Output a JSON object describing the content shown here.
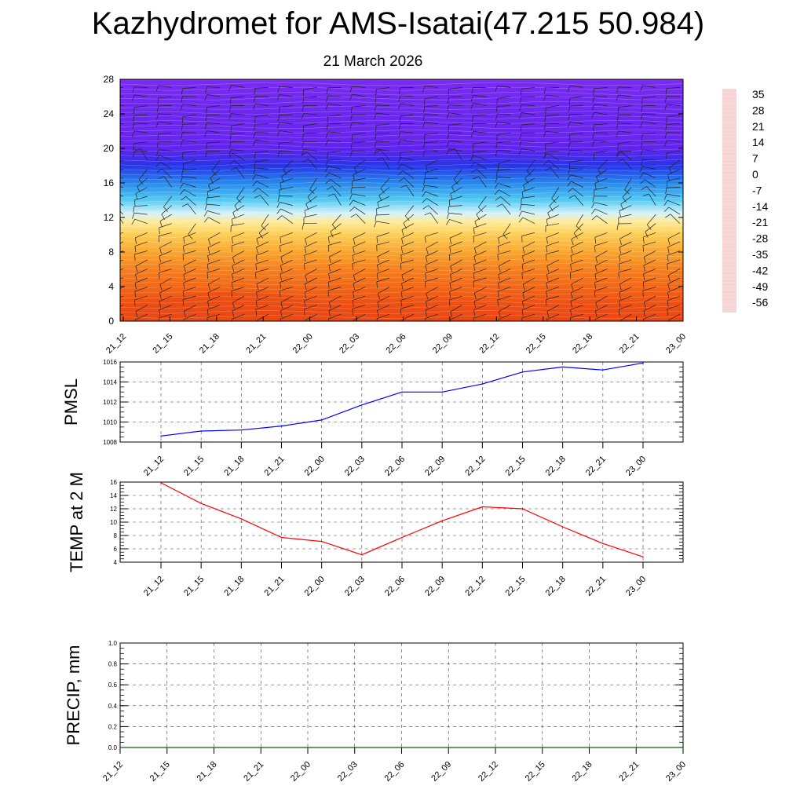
{
  "title": "Kazhydromet for AMS-Isatai(47.215 50.984)",
  "subtitle": "21 March 2026",
  "time_labels": [
    "21_12",
    "21_15",
    "21_18",
    "21_21",
    "22_00",
    "22_03",
    "22_06",
    "22_09",
    "22_12",
    "22_15",
    "22_18",
    "22_21",
    "23_00"
  ],
  "chart_data": [
    {
      "type": "heatmap",
      "name": "vertical temperature cross-section with wind barbs",
      "x": [
        "21_12",
        "21_15",
        "21_18",
        "21_21",
        "22_00",
        "22_03",
        "22_06",
        "22_09",
        "22_12",
        "22_15",
        "22_18",
        "22_21",
        "23_00"
      ],
      "ylim": [
        0,
        28
      ],
      "yticks": [
        0,
        4,
        8,
        12,
        16,
        20,
        24,
        28
      ],
      "colorbar": {
        "labels": [
          "35",
          "28",
          "21",
          "14",
          "7",
          "0",
          "-7",
          "-14",
          "-21",
          "-28",
          "-35",
          "-42",
          "-49",
          "-56"
        ],
        "colors": [
          "#f6d4d4",
          "#e84040",
          "#cc1010",
          "#e83010",
          "#f4701c",
          "#f8a028",
          "#fce070",
          "#fef8d0",
          "#8ce0f4",
          "#30c0f0",
          "#2070e8",
          "#3030e8",
          "#3c14e8",
          "#8a30f0"
        ]
      },
      "temperature_profile": {
        "levels": [
          0,
          2,
          4,
          6,
          8,
          10,
          11.5,
          12.5,
          14,
          16,
          18,
          20,
          22,
          24,
          26,
          28
        ],
        "values": [
          8,
          7,
          5,
          3,
          0,
          -4,
          -8,
          -14,
          -21,
          -30,
          -42,
          -52,
          -55,
          -55,
          -57,
          -59
        ]
      }
    },
    {
      "type": "line",
      "ylabel": "PMSL",
      "ylim": [
        1008,
        1016
      ],
      "yticks": [
        "1008",
        "1010",
        "1012",
        "1014",
        "1016"
      ],
      "x": [
        "21_12",
        "21_15",
        "21_18",
        "21_21",
        "22_00",
        "22_03",
        "22_06",
        "22_09",
        "22_12",
        "22_15",
        "22_18",
        "22_21",
        "23_00"
      ],
      "series": [
        {
          "values": [
            1008.6,
            1009.1,
            1009.2,
            1009.6,
            1010.2,
            1011.7,
            1013.0,
            1013.0,
            1013.8,
            1015.0,
            1015.5,
            1015.2,
            1015.9
          ],
          "color": "#0000ff"
        }
      ],
      "grid": true
    },
    {
      "type": "line",
      "ylabel": "TEMP at 2 M",
      "ylim": [
        4,
        16
      ],
      "yticks": [
        "4",
        "6",
        "8",
        "10",
        "12",
        "14",
        "16"
      ],
      "x": [
        "21_12",
        "21_15",
        "21_18",
        "21_21",
        "22_00",
        "22_03",
        "22_06",
        "22_09",
        "22_12",
        "22_15",
        "22_18",
        "22_21",
        "23_00"
      ],
      "series": [
        {
          "values": [
            15.9,
            12.8,
            10.5,
            7.7,
            7.1,
            5.1,
            7.7,
            10.2,
            12.3,
            12.0,
            9.3,
            6.8,
            4.8
          ],
          "color": "#ff0000"
        }
      ],
      "grid": true
    },
    {
      "type": "line",
      "ylabel": "PRECIP, mm",
      "ylim": [
        0,
        1
      ],
      "yticks": [
        "0.0",
        "0.2",
        "0.4",
        "0.6",
        "0.8",
        "1.0"
      ],
      "x": [
        "21_12",
        "21_15",
        "21_18",
        "21_21",
        "22_00",
        "22_03",
        "22_06",
        "22_09",
        "22_12",
        "22_15",
        "22_18",
        "22_21",
        "23_00"
      ],
      "series": [
        {
          "values": [
            0,
            0,
            0,
            0,
            0,
            0,
            0,
            0,
            0,
            0,
            0,
            0,
            0
          ],
          "color": "#006400"
        }
      ],
      "grid": true
    }
  ]
}
